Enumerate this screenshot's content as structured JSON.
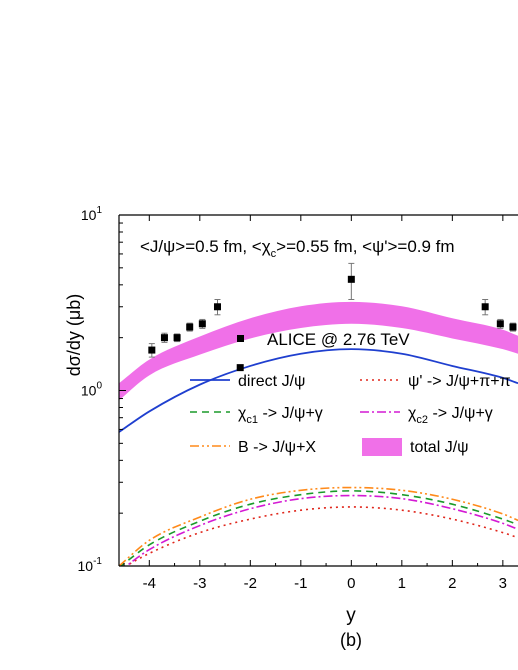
{
  "chart_data": {
    "type": "line",
    "panel_label": "(b)",
    "xlabel": "y",
    "ylabel": "dσ/dy (μb)",
    "xlim": [
      -4.6,
      3.3
    ],
    "ylim": [
      0.1,
      10
    ],
    "y_scale": "log",
    "x_ticks": [
      -4,
      -3,
      -2,
      -1,
      0,
      1,
      2,
      3
    ],
    "y_ticks": [
      {
        "value": 0.1,
        "mantissa": "10",
        "exp": "-1"
      },
      {
        "value": 1,
        "mantissa": "10",
        "exp": "0"
      },
      {
        "value": 10,
        "mantissa": "10",
        "exp": "1"
      }
    ],
    "annotation": {
      "parts": [
        "<J/ψ>=0.5 fm, <χ",
        "c",
        ">=0.55 fm, <ψ'>=0.9 fm"
      ]
    },
    "legend": {
      "data_label": "ALICE @ 2.76 TeV",
      "entries": [
        {
          "id": "direct",
          "parts": [
            "direct J/ψ"
          ]
        },
        {
          "id": "psi2s",
          "parts": [
            "ψ' ->  J/ψ+π+π"
          ]
        },
        {
          "id": "chic1",
          "parts": [
            "χ",
            "c1",
            " ->  J/ψ+γ"
          ]
        },
        {
          "id": "chic2",
          "parts": [
            "χ",
            "c2",
            " -> J/ψ+γ"
          ]
        },
        {
          "id": "bdecay",
          "parts": [
            "B -> J/ψ+X"
          ]
        },
        {
          "id": "total",
          "parts": [
            "total J/ψ"
          ]
        }
      ]
    },
    "series": [
      {
        "id": "direct",
        "color": "#1f3fcf",
        "dash": "none",
        "width": 1.8,
        "x": [
          -4.6,
          -4.0,
          -3.0,
          -2.0,
          -1.0,
          0.0,
          1.0,
          2.0,
          3.0,
          3.3
        ],
        "y": [
          0.58,
          0.76,
          1.08,
          1.38,
          1.62,
          1.72,
          1.62,
          1.38,
          1.18,
          1.1
        ]
      },
      {
        "id": "psi2s",
        "color": "#e0261b",
        "dash": "2,4",
        "width": 1.6,
        "x": [
          -4.6,
          -4.0,
          -3.0,
          -2.0,
          -1.0,
          0.0,
          1.0,
          2.0,
          3.0,
          3.3
        ],
        "y": [
          0.095,
          0.118,
          0.155,
          0.185,
          0.208,
          0.217,
          0.208,
          0.185,
          0.155,
          0.145
        ]
      },
      {
        "id": "chic1",
        "color": "#1a9a2a",
        "dash": "7,5",
        "width": 1.6,
        "x": [
          -4.6,
          -4.0,
          -3.0,
          -2.0,
          -1.0,
          0.0,
          1.0,
          2.0,
          3.0,
          3.3
        ],
        "y": [
          0.098,
          0.132,
          0.18,
          0.225,
          0.255,
          0.268,
          0.255,
          0.225,
          0.185,
          0.172
        ]
      },
      {
        "id": "chic2",
        "color": "#d41ad4",
        "dash": "9,3,2,3",
        "width": 1.6,
        "x": [
          -4.6,
          -4.0,
          -3.0,
          -2.0,
          -1.0,
          0.0,
          1.0,
          2.0,
          3.0,
          3.3
        ],
        "y": [
          0.093,
          0.124,
          0.17,
          0.212,
          0.242,
          0.252,
          0.242,
          0.212,
          0.175,
          0.162
        ]
      },
      {
        "id": "bdecay",
        "color": "#ff8a1a",
        "dash": "9,3,2,3,2,3",
        "width": 1.6,
        "x": [
          -4.6,
          -4.0,
          -3.0,
          -2.0,
          -1.0,
          0.0,
          1.0,
          2.0,
          3.0,
          3.3
        ],
        "y": [
          0.1,
          0.14,
          0.19,
          0.24,
          0.27,
          0.28,
          0.27,
          0.24,
          0.198,
          0.182
        ]
      }
    ],
    "band": {
      "id": "total",
      "color": "#f070e8",
      "x": [
        -4.6,
        -4.0,
        -3.0,
        -2.0,
        -1.0,
        0.0,
        1.0,
        2.0,
        3.0,
        3.3
      ],
      "lower": [
        0.88,
        1.22,
        1.6,
        1.98,
        2.27,
        2.4,
        2.27,
        1.98,
        1.72,
        1.62
      ],
      "upper": [
        1.1,
        1.5,
        2.03,
        2.58,
        3.02,
        3.2,
        3.02,
        2.58,
        2.22,
        2.05
      ]
    },
    "points": {
      "color": "#000000",
      "data": [
        {
          "x": -3.95,
          "y": 1.7,
          "err": 0.15
        },
        {
          "x": -3.7,
          "y": 2.0,
          "err": 0.12
        },
        {
          "x": -3.45,
          "y": 2.0,
          "err": 0.1
        },
        {
          "x": -3.2,
          "y": 2.3,
          "err": 0.12
        },
        {
          "x": -2.95,
          "y": 2.4,
          "err": 0.14
        },
        {
          "x": -2.65,
          "y": 3.0,
          "err": 0.3
        },
        {
          "x": -2.2,
          "y": 1.35,
          "err": 0
        },
        {
          "x": 0.0,
          "y": 4.3,
          "err": 1.0
        },
        {
          "x": 2.65,
          "y": 3.0,
          "err": 0.3
        },
        {
          "x": 2.95,
          "y": 2.4,
          "err": 0.14
        },
        {
          "x": 3.2,
          "y": 2.3,
          "err": 0.12
        }
      ]
    }
  }
}
